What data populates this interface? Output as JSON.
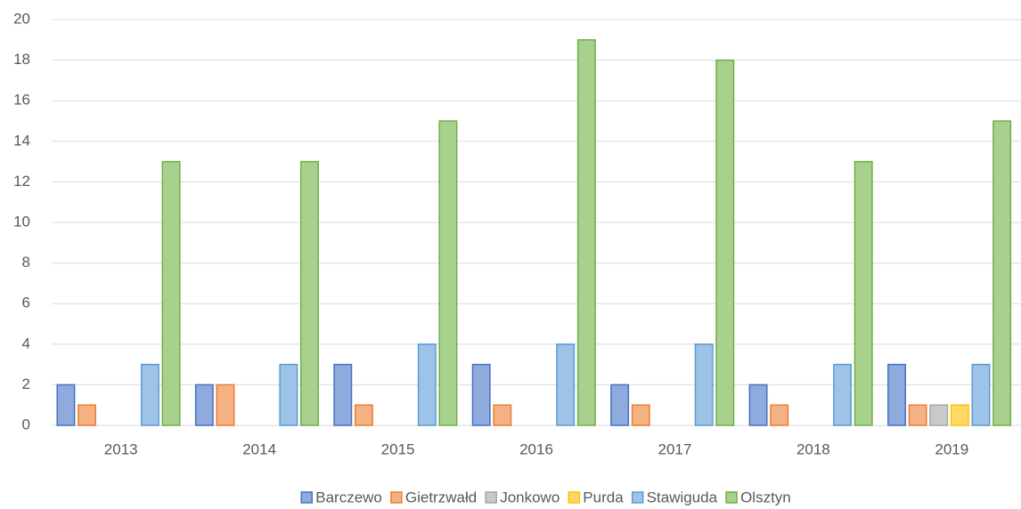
{
  "chart_data": {
    "type": "bar",
    "categories": [
      "2013",
      "2014",
      "2015",
      "2016",
      "2017",
      "2018",
      "2019"
    ],
    "series": [
      {
        "name": "Barczewo",
        "color": "#8faadc",
        "edgecolor": "#4472c4",
        "values": [
          2,
          2,
          3,
          3,
          2,
          2,
          3
        ]
      },
      {
        "name": "Gietrzwałd",
        "color": "#f4b183",
        "edgecolor": "#ed7d31",
        "values": [
          1,
          2,
          1,
          1,
          1,
          1,
          1
        ]
      },
      {
        "name": "Jonkowo",
        "color": "#c9c9c9",
        "edgecolor": "#a5a5a5",
        "values": [
          0,
          0,
          0,
          0,
          0,
          0,
          1
        ]
      },
      {
        "name": "Purda",
        "color": "#ffd966",
        "edgecolor": "#ffc000",
        "values": [
          0,
          0,
          0,
          0,
          0,
          0,
          1
        ]
      },
      {
        "name": "Stawiguda",
        "color": "#9dc3e6",
        "edgecolor": "#5b9bd5",
        "values": [
          3,
          3,
          4,
          4,
          4,
          3,
          3
        ]
      },
      {
        "name": "Olsztyn",
        "color": "#a9d18e",
        "edgecolor": "#70ad47",
        "values": [
          13,
          13,
          15,
          19,
          18,
          13,
          15
        ]
      }
    ],
    "ylim": [
      0,
      20
    ],
    "yticks": [
      0,
      2,
      4,
      6,
      8,
      10,
      12,
      14,
      16,
      18,
      20
    ],
    "grid": true,
    "legend": "bottom"
  }
}
